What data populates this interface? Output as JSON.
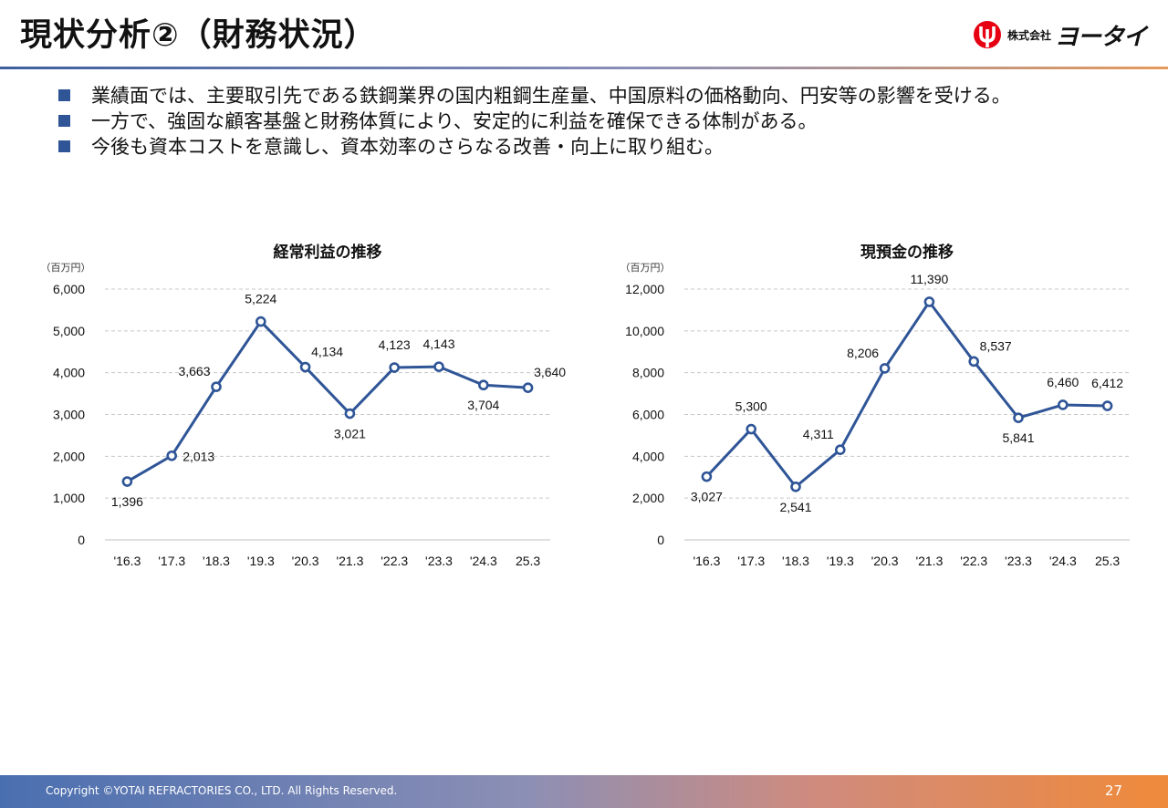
{
  "header": {
    "title": "現状分析②（財務状況）",
    "logo_small": "株式会社",
    "logo_name": "ヨータイ"
  },
  "bullets": [
    "業績面では、主要取引先である鉄鋼業界の国内粗鋼生産量、中国原料の価格動向、円安等の影響を受ける。",
    "一方で、強固な顧客基盤と財務体質により、安定的に利益を確保できる体制がある。",
    "今後も資本コストを意識し、資本効率のさらなる改善・向上に取り組む。"
  ],
  "colors": {
    "series": "#2f5597",
    "marker_fill": "#ffffff",
    "bullet": "#2f5597",
    "logo_red": "#e60012"
  },
  "chart_data": [
    {
      "type": "line",
      "title": "経常利益の推移",
      "unit_label": "（百万円）",
      "categories": [
        "'16.3",
        "'17.3",
        "'18.3",
        "'19.3",
        "'20.3",
        "'21.3",
        "'22.3",
        "'23.3",
        "'24.3",
        "25.3"
      ],
      "values": [
        1396,
        2013,
        3663,
        5224,
        4134,
        3021,
        4123,
        4143,
        3704,
        3640
      ],
      "data_labels": [
        "1,396",
        "2,013",
        "3,663",
        "5,224",
        "4,134",
        "3,021",
        "4,123",
        "4,143",
        "3,704",
        "3,640"
      ],
      "label_positions": [
        "below",
        "right",
        "above-left",
        "above",
        "above-right",
        "below",
        "above",
        "above",
        "below",
        "above-right"
      ],
      "y_ticks": [
        "0",
        "1,000",
        "2,000",
        "3,000",
        "4,000",
        "5,000",
        "6,000"
      ],
      "ylim": [
        0,
        6000
      ],
      "grid": true,
      "legend": "none"
    },
    {
      "type": "line",
      "title": "現預金の推移",
      "unit_label": "（百万円）",
      "categories": [
        "'16.3",
        "'17.3",
        "'18.3",
        "'19.3",
        "'20.3",
        "'21.3",
        "'22.3",
        "'23.3",
        "'24.3",
        "25.3"
      ],
      "values": [
        3027,
        5300,
        2541,
        4311,
        8206,
        11390,
        8537,
        5841,
        6460,
        6412
      ],
      "data_labels": [
        "3,027",
        "5,300",
        "2,541",
        "4,311",
        "8,206",
        "11,390",
        "8,537",
        "5,841",
        "6,460",
        "6,412"
      ],
      "label_positions": [
        "below",
        "above",
        "below",
        "above-left",
        "above-left",
        "above",
        "above-right",
        "below",
        "above",
        "above"
      ],
      "y_ticks": [
        "0",
        "2,000",
        "4,000",
        "6,000",
        "8,000",
        "10,000",
        "12,000"
      ],
      "ylim": [
        0,
        12000
      ],
      "grid": true,
      "legend": "none"
    }
  ],
  "footer": {
    "copyright": "Copyright ©YOTAI REFRACTORIES CO., LTD. All Rights Reserved.",
    "page_number": "27"
  }
}
